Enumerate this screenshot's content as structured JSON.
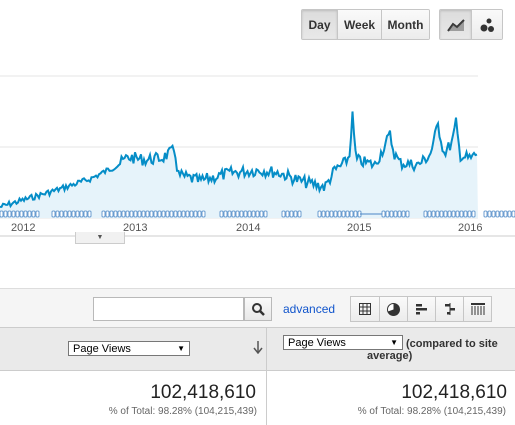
{
  "granularity": {
    "day": "Day",
    "week": "Week",
    "month": "Month",
    "selected": "Day"
  },
  "chart_types": [
    "line-chart-icon",
    "motion-chart-icon"
  ],
  "chart_data": {
    "type": "area",
    "xlabels": [
      "2012",
      "2013",
      "2014",
      "2015",
      "2016"
    ],
    "grid": true,
    "line_color": "#058dc7",
    "fill_color": "#e6f3fa"
  },
  "toolbar": {
    "search_value": "",
    "advanced_label": "advanced",
    "views": [
      "table-view-icon",
      "pie-view-icon",
      "performance-view-icon",
      "comparison-view-icon",
      "pivot-view-icon"
    ]
  },
  "table": {
    "col1_metric": "Page Views",
    "col2_metric": "Page Views",
    "col2_note": "(compared to site",
    "col2_note2": "average)",
    "col1_total": "102,418,610",
    "col1_pct": "% of Total: 98.28% (104,215,439)",
    "col2_total": "102,418,610",
    "col2_pct": "% of Total: 98.28% (104,215,439)"
  }
}
